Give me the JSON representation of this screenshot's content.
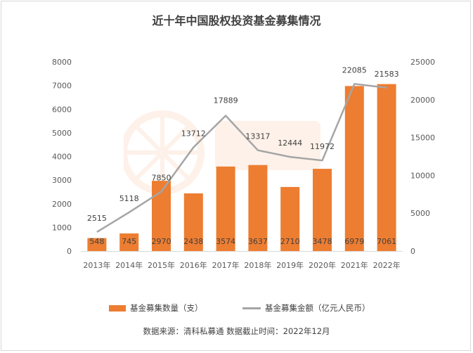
{
  "chart_data": {
    "type": "bar+line",
    "title": "近十年中国股权投资基金募集情况",
    "categories": [
      "2013年",
      "2014年",
      "2015年",
      "2016年",
      "2017年",
      "2018年",
      "2019年",
      "2020年",
      "2021年",
      "2022年"
    ],
    "series": [
      {
        "name": "基金募集数量（支）",
        "type": "bar",
        "axis": "left",
        "color": "#ED7D31",
        "values": [
          548,
          745,
          2970,
          2438,
          3574,
          3637,
          2710,
          3478,
          6979,
          7061
        ]
      },
      {
        "name": "基金募集金额（亿元人民币）",
        "type": "line",
        "axis": "right",
        "color": "#A5A5A5",
        "values": [
          2515,
          5118,
          7850,
          13712,
          17889,
          13317,
          12444,
          11972,
          22085,
          21583
        ]
      }
    ],
    "left_axis": {
      "min": 0,
      "max": 8000,
      "ticks": [
        0,
        1000,
        2000,
        3000,
        4000,
        5000,
        6000,
        7000,
        8000
      ]
    },
    "right_axis": {
      "min": 0,
      "max": 25000,
      "ticks": [
        0,
        5000,
        10000,
        15000,
        20000,
        25000
      ]
    },
    "grid": false,
    "legend_position": "bottom",
    "source": "数据来源：清科私募通  数据截止时间：2022年12月"
  }
}
